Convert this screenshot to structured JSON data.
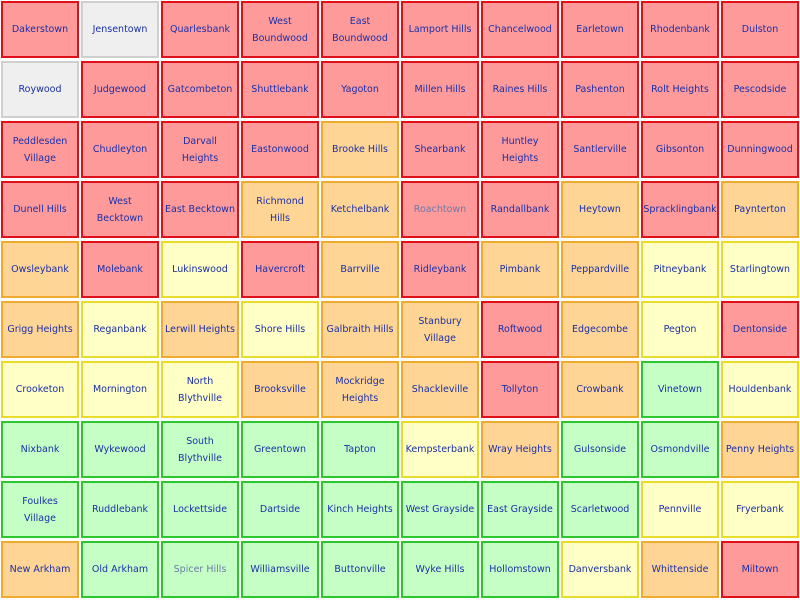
{
  "colors": {
    "red": {
      "fill": "#ff9a9a",
      "border": "#e0101a"
    },
    "orange": {
      "fill": "#ffd596",
      "border": "#efaa30"
    },
    "yellow": {
      "fill": "#ffffc6",
      "border": "#e6dc2a"
    },
    "green": {
      "fill": "#c6ffc6",
      "border": "#2ec62e"
    },
    "gray": {
      "fill": "#efefef",
      "border": "#cfcfcf"
    }
  },
  "grid": {
    "rows": [
      [
        {
          "name": "Dakerstown",
          "status": "red"
        },
        {
          "name": "Jensentown",
          "status": "gray"
        },
        {
          "name": "Quarlesbank",
          "status": "red"
        },
        {
          "name": "West Boundwood",
          "status": "red"
        },
        {
          "name": "East Boundwood",
          "status": "red"
        },
        {
          "name": "Lamport Hills",
          "status": "red"
        },
        {
          "name": "Chancelwood",
          "status": "red"
        },
        {
          "name": "Earletown",
          "status": "red"
        },
        {
          "name": "Rhodenbank",
          "status": "red"
        },
        {
          "name": "Dulston",
          "status": "red"
        }
      ],
      [
        {
          "name": "Roywood",
          "status": "gray"
        },
        {
          "name": "Judgewood",
          "status": "red"
        },
        {
          "name": "Gatcombeton",
          "status": "red"
        },
        {
          "name": "Shuttlebank",
          "status": "red"
        },
        {
          "name": "Yagoton",
          "status": "red"
        },
        {
          "name": "Millen Hills",
          "status": "red"
        },
        {
          "name": "Raines Hills",
          "status": "red"
        },
        {
          "name": "Pashenton",
          "status": "red"
        },
        {
          "name": "Rolt Heights",
          "status": "red"
        },
        {
          "name": "Pescodside",
          "status": "red"
        }
      ],
      [
        {
          "name": "Peddlesden Village",
          "status": "red"
        },
        {
          "name": "Chudleyton",
          "status": "red"
        },
        {
          "name": "Darvall Heights",
          "status": "red"
        },
        {
          "name": "Eastonwood",
          "status": "red"
        },
        {
          "name": "Brooke Hills",
          "status": "orange"
        },
        {
          "name": "Shearbank",
          "status": "red"
        },
        {
          "name": "Huntley Heights",
          "status": "red"
        },
        {
          "name": "Santlerville",
          "status": "red"
        },
        {
          "name": "Gibsonton",
          "status": "red"
        },
        {
          "name": "Dunningwood",
          "status": "red"
        }
      ],
      [
        {
          "name": "Dunell Hills",
          "status": "red"
        },
        {
          "name": "West Becktown",
          "status": "red"
        },
        {
          "name": "East Becktown",
          "status": "red"
        },
        {
          "name": "Richmond Hills",
          "status": "orange"
        },
        {
          "name": "Ketchelbank",
          "status": "orange"
        },
        {
          "name": "Roachtown",
          "status": "red",
          "dim": true
        },
        {
          "name": "Randallbank",
          "status": "red"
        },
        {
          "name": "Heytown",
          "status": "orange"
        },
        {
          "name": "Spracklingbank",
          "status": "red"
        },
        {
          "name": "Paynterton",
          "status": "orange"
        }
      ],
      [
        {
          "name": "Owsleybank",
          "status": "orange"
        },
        {
          "name": "Molebank",
          "status": "red"
        },
        {
          "name": "Lukinswood",
          "status": "yellow"
        },
        {
          "name": "Havercroft",
          "status": "red"
        },
        {
          "name": "Barrville",
          "status": "orange"
        },
        {
          "name": "Ridleybank",
          "status": "red"
        },
        {
          "name": "Pimbank",
          "status": "orange"
        },
        {
          "name": "Peppardville",
          "status": "orange"
        },
        {
          "name": "Pitneybank",
          "status": "yellow"
        },
        {
          "name": "Starlingtown",
          "status": "yellow"
        }
      ],
      [
        {
          "name": "Grigg Heights",
          "status": "orange"
        },
        {
          "name": "Reganbank",
          "status": "yellow"
        },
        {
          "name": "Lerwill Heights",
          "status": "orange"
        },
        {
          "name": "Shore Hills",
          "status": "yellow"
        },
        {
          "name": "Galbraith Hills",
          "status": "orange"
        },
        {
          "name": "Stanbury Village",
          "status": "orange"
        },
        {
          "name": "Roftwood",
          "status": "red"
        },
        {
          "name": "Edgecombe",
          "status": "orange"
        },
        {
          "name": "Pegton",
          "status": "yellow"
        },
        {
          "name": "Dentonside",
          "status": "red"
        }
      ],
      [
        {
          "name": "Crooketon",
          "status": "yellow"
        },
        {
          "name": "Mornington",
          "status": "yellow"
        },
        {
          "name": "North Blythville",
          "status": "yellow"
        },
        {
          "name": "Brooksville",
          "status": "orange"
        },
        {
          "name": "Mockridge Heights",
          "status": "orange"
        },
        {
          "name": "Shackleville",
          "status": "orange"
        },
        {
          "name": "Tollyton",
          "status": "red"
        },
        {
          "name": "Crowbank",
          "status": "orange"
        },
        {
          "name": "Vinetown",
          "status": "green"
        },
        {
          "name": "Houldenbank",
          "status": "yellow"
        }
      ],
      [
        {
          "name": "Nixbank",
          "status": "green"
        },
        {
          "name": "Wykewood",
          "status": "green"
        },
        {
          "name": "South Blythville",
          "status": "green"
        },
        {
          "name": "Greentown",
          "status": "green"
        },
        {
          "name": "Tapton",
          "status": "green"
        },
        {
          "name": "Kempsterbank",
          "status": "yellow"
        },
        {
          "name": "Wray Heights",
          "status": "orange"
        },
        {
          "name": "Gulsonside",
          "status": "green"
        },
        {
          "name": "Osmondville",
          "status": "green"
        },
        {
          "name": "Penny Heights",
          "status": "orange"
        }
      ],
      [
        {
          "name": "Foulkes Village",
          "status": "green"
        },
        {
          "name": "Ruddlebank",
          "status": "green"
        },
        {
          "name": "Lockettside",
          "status": "green"
        },
        {
          "name": "Dartside",
          "status": "green"
        },
        {
          "name": "Kinch Heights",
          "status": "green"
        },
        {
          "name": "West Grayside",
          "status": "green"
        },
        {
          "name": "East Grayside",
          "status": "green"
        },
        {
          "name": "Scarletwood",
          "status": "green"
        },
        {
          "name": "Pennville",
          "status": "yellow"
        },
        {
          "name": "Fryerbank",
          "status": "yellow"
        }
      ],
      [
        {
          "name": "New Arkham",
          "status": "orange"
        },
        {
          "name": "Old Arkham",
          "status": "green"
        },
        {
          "name": "Spicer Hills",
          "status": "green",
          "dim": true
        },
        {
          "name": "Williamsville",
          "status": "green"
        },
        {
          "name": "Buttonville",
          "status": "green"
        },
        {
          "name": "Wyke Hills",
          "status": "green"
        },
        {
          "name": "Hollomstown",
          "status": "green"
        },
        {
          "name": "Danversbank",
          "status": "yellow"
        },
        {
          "name": "Whittenside",
          "status": "orange"
        },
        {
          "name": "Miltown",
          "status": "red"
        }
      ]
    ]
  }
}
